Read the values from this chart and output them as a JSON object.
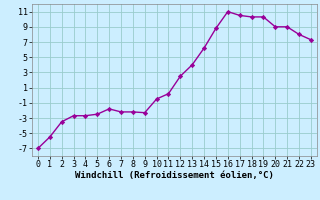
{
  "x": [
    0,
    1,
    2,
    3,
    4,
    5,
    6,
    7,
    8,
    9,
    10,
    11,
    12,
    13,
    14,
    15,
    16,
    17,
    18,
    19,
    20,
    21,
    22,
    23
  ],
  "y": [
    -7,
    -5.5,
    -3.5,
    -2.7,
    -2.7,
    -2.5,
    -1.8,
    -2.2,
    -2.2,
    -2.3,
    -0.5,
    0.2,
    2.5,
    4.0,
    6.2,
    8.8,
    11.0,
    10.5,
    10.3,
    10.3,
    9.0,
    9.0,
    8.0,
    7.3
  ],
  "line_color": "#990099",
  "marker": "D",
  "markersize": 2.2,
  "linewidth": 1.0,
  "background_color": "#cceeff",
  "grid_color": "#99cccc",
  "xlabel": "Windchill (Refroidissement éolien,°C)",
  "ylim": [
    -8,
    12
  ],
  "xlim": [
    -0.5,
    23.5
  ],
  "yticks": [
    -7,
    -5,
    -3,
    -1,
    1,
    3,
    5,
    7,
    9,
    11
  ],
  "xticks": [
    0,
    1,
    2,
    3,
    4,
    5,
    6,
    7,
    8,
    9,
    10,
    11,
    12,
    13,
    14,
    15,
    16,
    17,
    18,
    19,
    20,
    21,
    22,
    23
  ],
  "xlabel_fontsize": 6.5,
  "tick_fontsize": 6.0
}
